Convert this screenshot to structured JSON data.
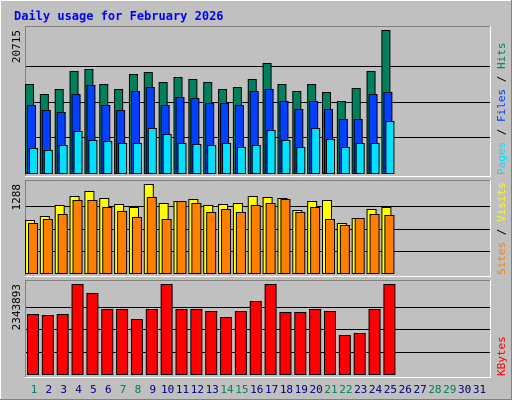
{
  "chart_data": {
    "type": "bar",
    "title": "Daily usage for February 2026",
    "colors": {
      "hits": "#00805C",
      "files": "#0040FF",
      "pages": "#00E0FF",
      "visits": "#FFFF00",
      "sites": "#FF8000",
      "kbytes": "#FF0000",
      "weekend_label": "#00805C",
      "weekday_label": "#000080",
      "title": "#0000FF"
    },
    "days": [
      "1",
      "2",
      "3",
      "4",
      "5",
      "6",
      "7",
      "8",
      "9",
      "10",
      "11",
      "12",
      "13",
      "14",
      "15",
      "16",
      "17",
      "18",
      "19",
      "20",
      "21",
      "22",
      "23",
      "24",
      "25",
      "26",
      "27",
      "28",
      "29",
      "30",
      "31"
    ],
    "weekend_days": [
      1,
      7,
      8,
      14,
      15,
      21,
      22,
      28,
      29
    ],
    "panels": [
      {
        "id": "usage",
        "max_label": "20715",
        "ylim": [
          0,
          20715
        ],
        "legend": [
          {
            "text": "Pages",
            "color": "#00E0FF"
          },
          {
            "text": " / ",
            "color": "#000000"
          },
          {
            "text": "Files",
            "color": "#0040FF"
          },
          {
            "text": " / ",
            "color": "#000000"
          },
          {
            "text": "Hits",
            "color": "#00805C"
          }
        ],
        "series": [
          {
            "name": "Hits",
            "color": "#00805C",
            "values": [
              12950,
              11500,
              12100,
              14800,
              15000,
              12950,
              12100,
              14400,
              14600,
              13200,
              13900,
              13600,
              13200,
              12100,
              12500,
              13600,
              15900,
              12950,
              11900,
              12950,
              11700,
              10500,
              12300,
              14800,
              20715
            ]
          },
          {
            "name": "Files",
            "color": "#0040FF",
            "values": [
              9800,
              9150,
              8800,
              11500,
              12700,
              9800,
              9150,
              11900,
              12400,
              9900,
              11000,
              10900,
              10100,
              10100,
              9800,
              11900,
              12100,
              10500,
              9300,
              10400,
              9300,
              7800,
              7800,
              11400,
              11700
            ]
          },
          {
            "name": "Pages",
            "color": "#00E0FF",
            "values": [
              3600,
              3300,
              4100,
              6100,
              4800,
              4700,
              4400,
              4400,
              6500,
              5600,
              4400,
              4200,
              4000,
              4300,
              3700,
              4100,
              6200,
              4800,
              3700,
              6500,
              4900,
              3800,
              4400,
              4400,
              7500
            ]
          }
        ]
      },
      {
        "id": "visits",
        "max_label": "1288",
        "ylim": [
          0,
          1288
        ],
        "legend": [
          {
            "text": "Sites",
            "color": "#FF8000"
          },
          {
            "text": " / ",
            "color": "#000000"
          },
          {
            "text": "Visits",
            "color": "#FFFF00"
          }
        ],
        "series": [
          {
            "name": "Visits",
            "color": "#FFFF00",
            "values": [
              760,
              830,
              990,
              1120,
              1190,
              1090,
              1000,
              960,
              1290,
              1010,
              1040,
              1070,
              980,
              1000,
              1010,
              1120,
              1100,
              1090,
              910,
              1040,
              1060,
              720,
              790,
              930,
              960
            ]
          },
          {
            "name": "Sites",
            "color": "#FF8000",
            "values": [
              720,
              780,
              860,
              1050,
              1060,
              960,
              900,
              810,
              1100,
              780,
              1040,
              1020,
              880,
              930,
              880,
              980,
              1020,
              1070,
              880,
              960,
              780,
              700,
              800,
              860,
              840
            ]
          }
        ]
      },
      {
        "id": "kbytes",
        "max_label": "2343893",
        "ylim": [
          0,
          2343893
        ],
        "legend": [
          {
            "text": "KBytes",
            "color": "#FF0000"
          }
        ],
        "series": [
          {
            "name": "KBytes",
            "color": "#FF0000",
            "values": [
              1560000,
              1540000,
              1560000,
              2343893,
              2100000,
              1680000,
              1680000,
              1420000,
              1680000,
              2343893,
              1680000,
              1680000,
              1650000,
              1480000,
              1650000,
              1890000,
              2343893,
              1620000,
              1620000,
              1680000,
              1650000,
              1010000,
              1060000,
              1680000,
              2343893
            ]
          }
        ]
      }
    ]
  }
}
